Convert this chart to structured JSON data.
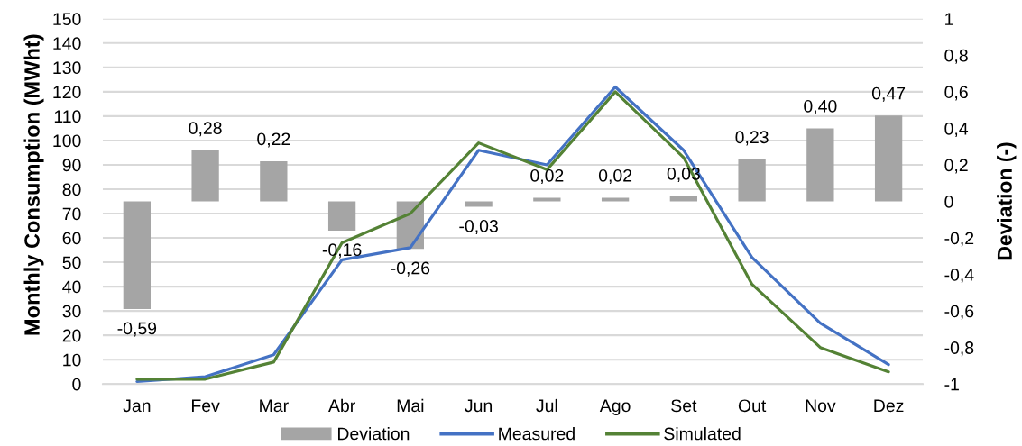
{
  "chart_data": {
    "type": "line",
    "categories": [
      "Jan",
      "Fev",
      "Mar",
      "Abr",
      "Mai",
      "Jun",
      "Jul",
      "Ago",
      "Set",
      "Out",
      "Nov",
      "Dez"
    ],
    "ylabel": "Monthly Consumption (MWht)",
    "y2label": "Deviation (-)",
    "ylim": [
      0,
      150
    ],
    "yticks": [
      0,
      10,
      20,
      30,
      40,
      50,
      60,
      70,
      80,
      90,
      100,
      110,
      120,
      130,
      140,
      150
    ],
    "y2lim": [
      -1,
      1
    ],
    "y2ticks": [
      -1,
      {
        "value": -0.8,
        "label": "-0,8"
      },
      {
        "value": -0.6,
        "label": "-0,6"
      },
      {
        "value": -0.4,
        "label": "-0,4"
      },
      {
        "value": -0.2,
        "label": "-0,2"
      },
      0,
      {
        "value": 0.2,
        "label": "0,2"
      },
      {
        "value": 0.4,
        "label": "0,4"
      },
      {
        "value": 0.6,
        "label": "0,6"
      },
      {
        "value": 0.8,
        "label": "0,8"
      },
      1
    ],
    "grid": "y",
    "legend": "bottom",
    "series": [
      {
        "name": "Deviation",
        "type": "bar",
        "axis": "y2",
        "color": "#a5a5a5",
        "values": [
          -0.59,
          0.28,
          0.22,
          -0.16,
          -0.26,
          -0.03,
          0.02,
          0.02,
          0.03,
          0.23,
          0.4,
          0.47
        ],
        "value_labels": [
          "-0,59",
          "0,28",
          "0,22",
          "-0,16",
          "-0,26",
          "-0,03",
          "0,02",
          "0,02",
          "0,03",
          "0,23",
          "0,40",
          "0,47"
        ]
      },
      {
        "name": "Measured",
        "color": "#4472c4",
        "values": [
          1,
          3,
          12,
          51,
          56,
          96,
          90,
          122,
          96,
          52,
          25,
          8
        ]
      },
      {
        "name": "Simulated",
        "color": "#548235",
        "values": [
          2,
          2,
          9,
          58,
          70,
          99,
          88,
          120,
          93,
          41,
          15,
          5
        ]
      }
    ]
  }
}
